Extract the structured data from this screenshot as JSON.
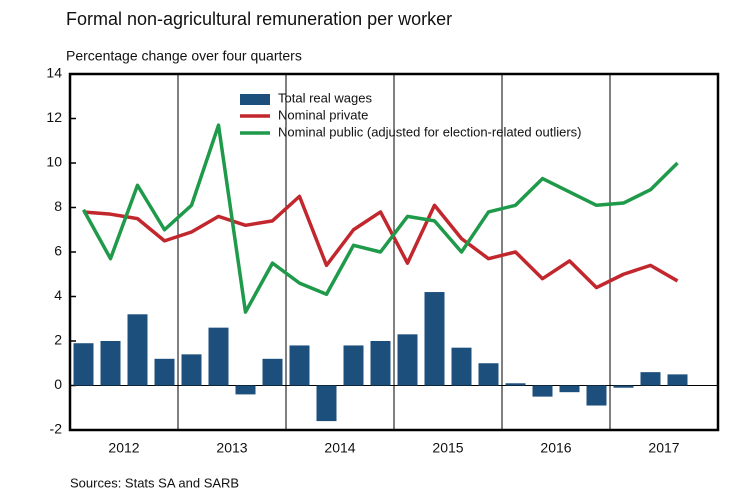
{
  "chart_data": {
    "type": "bar_line",
    "title": "Formal non-agricultural remuneration per worker",
    "subtitle": "Percentage change over four quarters",
    "source": "Sources: Stats SA and SARB",
    "x_groups": [
      "2012",
      "2013",
      "2014",
      "2015",
      "2016",
      "2017"
    ],
    "categories": [
      null,
      null,
      null,
      null,
      null,
      null,
      null,
      null,
      null,
      null,
      null,
      null,
      null,
      null,
      null,
      null,
      null,
      null,
      null,
      null,
      null,
      null,
      null
    ],
    "series": [
      {
        "name": "Total real wages",
        "kind": "bar",
        "color": "#1d4f7c",
        "values": [
          1.9,
          2.0,
          3.2,
          1.2,
          1.4,
          2.6,
          -0.4,
          1.2,
          1.8,
          -1.6,
          1.8,
          2.0,
          2.3,
          4.2,
          1.7,
          1.0,
          0.1,
          -0.5,
          -0.3,
          -0.9,
          -0.1,
          0.6,
          0.5
        ]
      },
      {
        "name": "Nominal private",
        "kind": "line",
        "color": "#c1272d",
        "values": [
          7.8,
          7.7,
          7.5,
          6.5,
          6.9,
          7.6,
          7.2,
          7.4,
          8.5,
          5.4,
          7.0,
          7.8,
          5.5,
          8.1,
          6.6,
          5.7,
          6.0,
          4.8,
          5.6,
          4.4,
          5.0,
          5.4,
          4.7
        ]
      },
      {
        "name": "Nominal public (adjusted for election-related outliers)",
        "kind": "line",
        "color": "#1e9a4a",
        "values": [
          7.9,
          5.7,
          9.0,
          7.0,
          8.1,
          11.7,
          3.3,
          5.5,
          4.6,
          4.1,
          6.3,
          6.0,
          7.6,
          7.4,
          6.0,
          7.8,
          8.1,
          9.3,
          8.7,
          8.1,
          8.2,
          8.8,
          10.0
        ]
      }
    ],
    "ylim": [
      -2,
      14
    ],
    "yticks": [
      -2,
      0,
      2,
      4,
      6,
      8,
      10,
      12,
      14
    ]
  }
}
